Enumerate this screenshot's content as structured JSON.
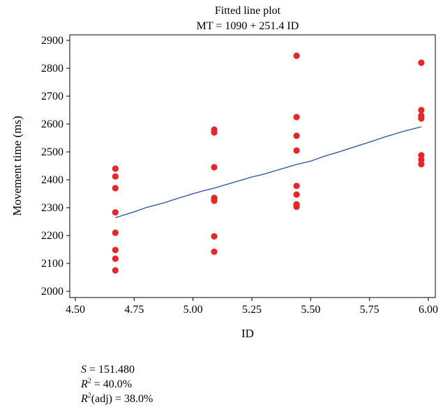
{
  "chart_data": {
    "type": "scatter",
    "title": "Fitted line plot",
    "subtitle": "MT = 1090 + 251.4 ID",
    "xlabel": "ID",
    "ylabel": "Movement time (ms)",
    "xlim": [
      4.5,
      6.0
    ],
    "ylim": [
      2000,
      2900
    ],
    "xticks": [
      "4.50",
      "4.75",
      "5.00",
      "5.25",
      "5.50",
      "5.75",
      "6.00"
    ],
    "yticks": [
      "2000",
      "2100",
      "2200",
      "2300",
      "2400",
      "2500",
      "2600",
      "2700",
      "2800",
      "2900"
    ],
    "grid": false,
    "series": [
      {
        "kind": "points",
        "color": "#e8262a",
        "x": [
          4.67,
          4.67,
          4.67,
          4.67,
          4.67,
          4.67,
          4.67,
          4.67,
          5.09,
          5.09,
          5.09,
          5.09,
          5.09,
          5.09,
          5.09,
          5.09,
          5.44,
          5.44,
          5.44,
          5.44,
          5.44,
          5.44,
          5.44,
          5.44,
          5.44,
          5.97,
          5.97,
          5.97,
          5.97,
          5.97,
          5.97,
          5.97
        ],
        "y": [
          2440,
          2412,
          2370,
          2283,
          2210,
          2148,
          2117,
          2075,
          2580,
          2570,
          2445,
          2335,
          2325,
          2197,
          2142,
          2330,
          2845,
          2625,
          2558,
          2505,
          2378,
          2347,
          2312,
          2303,
          2310,
          2820,
          2650,
          2630,
          2620,
          2488,
          2472,
          2456
        ]
      },
      {
        "kind": "line",
        "color": "#2a4ea0",
        "x": [
          4.67,
          4.75,
          4.8,
          4.88,
          4.93,
          5.0,
          5.05,
          5.09,
          5.15,
          5.25,
          5.3,
          5.38,
          5.44,
          5.5,
          5.56,
          5.62,
          5.7,
          5.75,
          5.82,
          5.9,
          5.97
        ],
        "y": [
          2264,
          2285,
          2300,
          2318,
          2332,
          2350,
          2362,
          2370,
          2385,
          2410,
          2420,
          2440,
          2455,
          2467,
          2485,
          2500,
          2522,
          2535,
          2555,
          2575,
          2590
        ]
      }
    ]
  },
  "stats": {
    "s_label": "S",
    "s_value": " = 151.480",
    "r2_label": "R",
    "r2_sup": "2",
    "r2_value": " = 40.0%",
    "r2adj_label": "R",
    "r2adj_sup": "2",
    "r2adj_suffix": "(adj) = 38.0%"
  }
}
